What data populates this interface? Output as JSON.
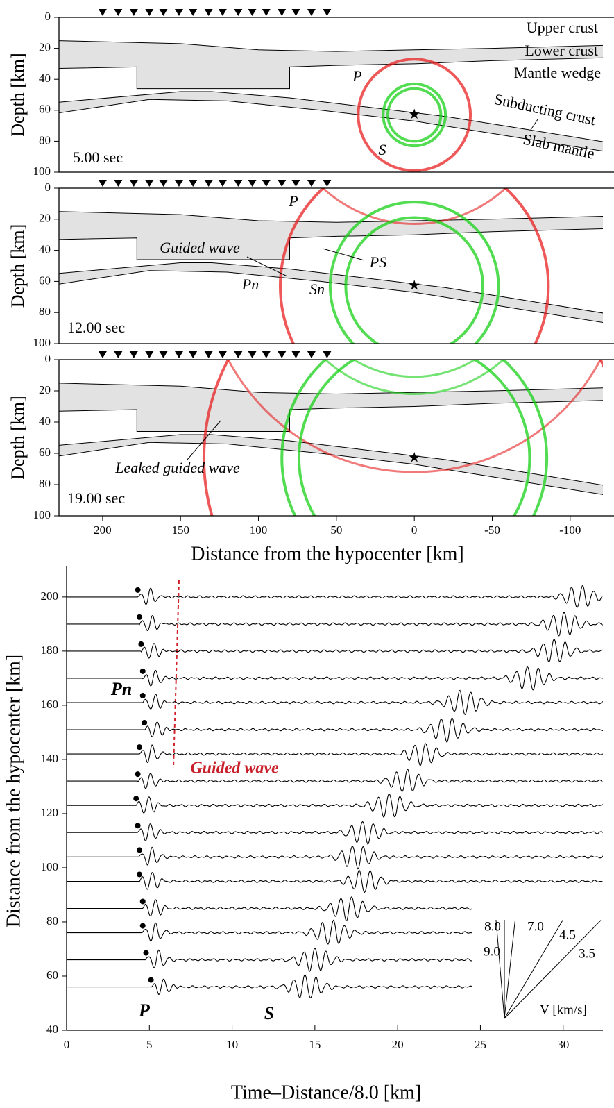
{
  "chart_data": [
    {
      "type": "snapshot",
      "ylabel": "Depth [km]",
      "time_label": "5.00 sec",
      "xlim": [
        228,
        -121
      ],
      "ylim": [
        100,
        0
      ],
      "yticks": [
        0,
        20,
        40,
        60,
        80,
        100
      ],
      "hypocenter": {
        "distance": 0,
        "depth": 63
      },
      "labels": [
        "Upper crust",
        "Lower crust",
        "Mantle wedge",
        "Subducting crust",
        "Slab mantle",
        "P",
        "S"
      ]
    },
    {
      "type": "snapshot",
      "ylabel": "Depth [km]",
      "time_label": "12.00 sec",
      "xlim": [
        228,
        -121
      ],
      "ylim": [
        100,
        0
      ],
      "yticks": [
        0,
        20,
        40,
        60,
        80,
        100
      ],
      "hypocenter": {
        "distance": 0,
        "depth": 63
      },
      "labels": [
        "P",
        "Guided wave",
        "PS",
        "Pn",
        "Sn"
      ]
    },
    {
      "type": "snapshot",
      "ylabel": "Depth [km]",
      "time_label": "19.00 sec",
      "xlim": [
        228,
        -121
      ],
      "ylim": [
        100,
        0
      ],
      "yticks": [
        0,
        20,
        40,
        60,
        80,
        100
      ],
      "xticks": [
        200,
        150,
        100,
        50,
        0,
        -50,
        -100
      ],
      "xlabel": "Distance from the hypocenter [km]",
      "hypocenter": {
        "distance": 0,
        "depth": 63
      },
      "labels": [
        "Leaked guided wave"
      ]
    },
    {
      "type": "record-section",
      "xlabel": "Time–Distance/8.0 [km]",
      "ylabel": "Distance from the hypocenter [km]",
      "xlim": [
        0,
        32.4
      ],
      "ylim": [
        40,
        211.5
      ],
      "xticks": [
        0,
        5,
        10,
        15,
        20,
        25,
        30
      ],
      "yticks": [
        40,
        60,
        80,
        100,
        120,
        140,
        160,
        180,
        200
      ],
      "distances": [
        200,
        190,
        180,
        170,
        161,
        151,
        142,
        132,
        123,
        113,
        104,
        95,
        85,
        76,
        66,
        56
      ],
      "picks": [
        4.3,
        4.4,
        4.5,
        4.6,
        4.6,
        4.7,
        4.4,
        4.3,
        4.2,
        4.3,
        4.4,
        4.4,
        4.6,
        4.6,
        4.8,
        5.1
      ],
      "s_arrivals": [
        31,
        30,
        29.5,
        28,
        24,
        23,
        21.5,
        20.5,
        19.5,
        18,
        17.5,
        18,
        17,
        16,
        15,
        14.5
      ],
      "record_ends": [
        32.4,
        32.4,
        32.4,
        32.4,
        32.4,
        32.4,
        32.4,
        32.4,
        32.4,
        32.4,
        32.4,
        32.4,
        24.5,
        24.5,
        24.5,
        24.5
      ],
      "reduction_velocity": 8,
      "velocities": [
        {
          "value": 9,
          "label": "9.0"
        },
        {
          "value": 8,
          "label": "8.0"
        },
        {
          "value": 7,
          "label": "7.0"
        },
        {
          "value": 4.5,
          "label": "4.5"
        },
        {
          "value": 3.5,
          "label": "3.5"
        }
      ],
      "velocity_label": "V [km/s]",
      "labels": [
        "Pn",
        "Guided wave",
        "P",
        "S"
      ]
    }
  ]
}
